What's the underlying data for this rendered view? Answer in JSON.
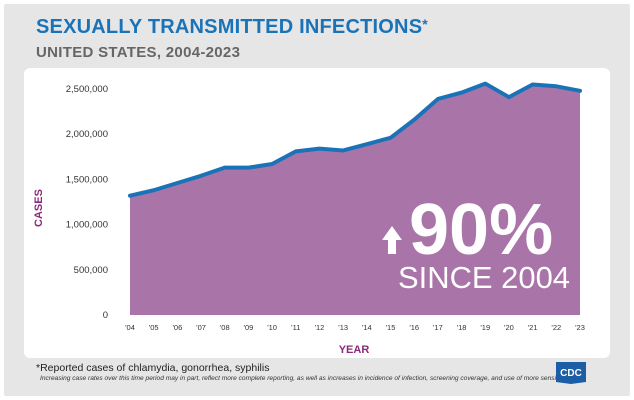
{
  "header": {
    "title": "SEXUALLY TRANSMITTED INFECTIONS",
    "title_mark": "*",
    "subtitle": "UNITED STATES, 2004-2023"
  },
  "callout": {
    "percent": "90%",
    "since": "SINCE 2004",
    "arrow_icon": "up-arrow-icon"
  },
  "footer": {
    "footnote": "*Reported cases of chlamydia, gonorrhea, syphilis",
    "disclaimer": "Increasing case rates over this time period may in part, reflect more complete reporting, as well as increases in incidence of infection, screening coverage, and use of more sensitive tests.",
    "logo_text": "CDC"
  },
  "colors": {
    "title": "#1b73b7",
    "area_fill": "#a974a8",
    "line": "#1b73b7",
    "axis_title": "#8b2a7a",
    "callout_text": "#ffffff"
  },
  "chart_data": {
    "type": "area",
    "title": "SEXUALLY TRANSMITTED INFECTIONS*",
    "subtitle": "UNITED STATES, 2004-2023",
    "xlabel": "YEAR",
    "ylabel": "CASES",
    "categories": [
      "'04",
      "'05",
      "'06",
      "'07",
      "'08",
      "'09",
      "'10",
      "'11",
      "'12",
      "'13",
      "'14",
      "'15",
      "'16",
      "'17",
      "'18",
      "'19",
      "'20",
      "'21",
      "'22",
      "'23"
    ],
    "series": [
      {
        "values": [
          1320000,
          1380000,
          1460000,
          1540000,
          1630000,
          1630000,
          1670000,
          1810000,
          1840000,
          1820000,
          1890000,
          1960000,
          2160000,
          2390000,
          2460000,
          2560000,
          2410000,
          2550000,
          2530000,
          2480000
        ]
      }
    ],
    "ylim": [
      0,
      2500000
    ],
    "yticks": [
      0,
      500000,
      1000000,
      1500000,
      2000000,
      2500000
    ],
    "ytick_labels": [
      "0",
      "500,000",
      "1,000,000",
      "1,500,000",
      "2,000,000",
      "2,500,000"
    ],
    "grid": false,
    "legend": "none"
  }
}
